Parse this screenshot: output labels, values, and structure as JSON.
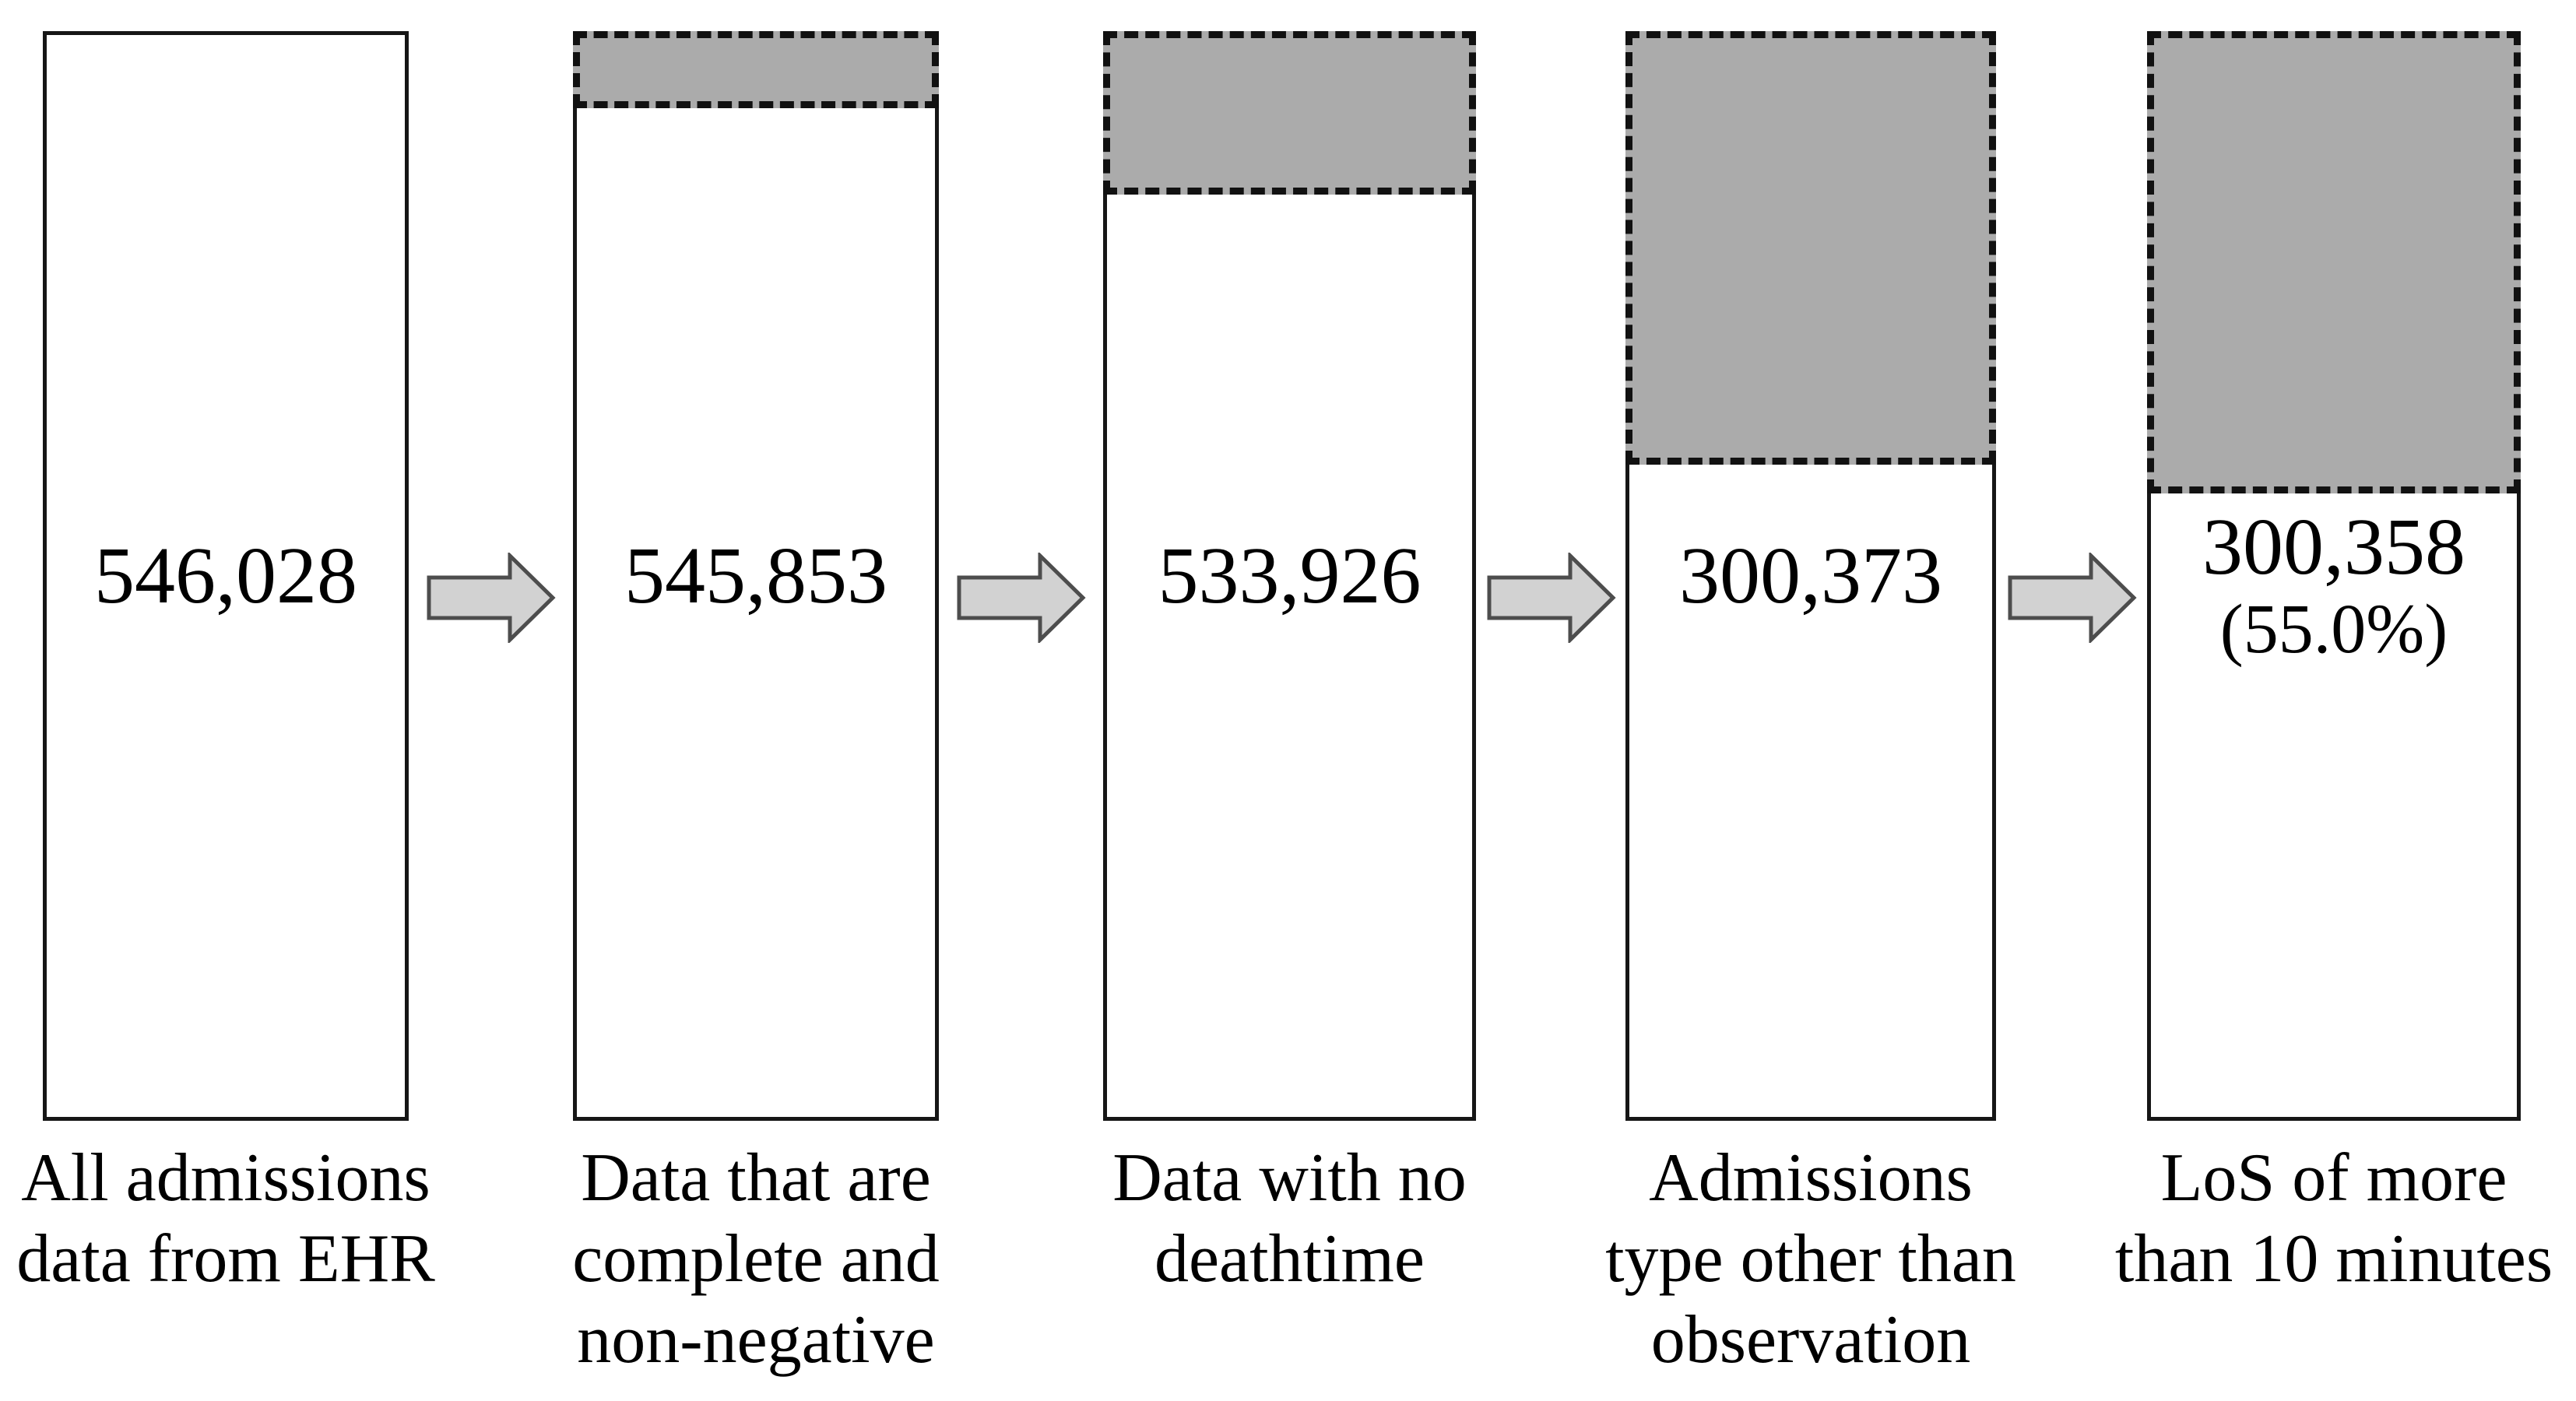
{
  "figure": {
    "description": "Admissions data filtering flow diagram with five bars and four right arrows",
    "background": "#ffffff"
  },
  "bars": [
    {
      "value": "546,028",
      "percent": "",
      "label": "All admissions\ndata from EHR",
      "excluded_pct": 0
    },
    {
      "value": "545,853",
      "percent": "",
      "label": "Data that are\ncomplete and\nnon-negative",
      "excluded_pct": 7.1
    },
    {
      "value": "533,926",
      "percent": "",
      "label": "Data with no\ndeathtime",
      "excluded_pct": 15.1
    },
    {
      "value": "300,373",
      "percent": "",
      "label": "Admissions\ntype other than\nobservation",
      "excluded_pct": 40.1
    },
    {
      "value": "300,358",
      "percent": "(55.0%)",
      "label": "LoS of more\nthan 10 minutes",
      "excluded_pct": 42.7
    }
  ],
  "colors": {
    "excluded_fill": "#ababab",
    "dash": "#111111",
    "bar_border": "#161616",
    "arrow_fill": "#d2d2d2",
    "arrow_border": "#4d4d4d",
    "text": "#000000"
  },
  "chart_data": {
    "type": "bar",
    "title": "",
    "categories": [
      "All admissions data from EHR",
      "Data that are complete and non-negative",
      "Data with no deathtime",
      "Admissions type other than observation",
      "LoS of more than 10 minutes"
    ],
    "values": [
      546028,
      545853,
      533926,
      300373,
      300358
    ],
    "value_labels": [
      "546,028",
      "545,853",
      "533,926",
      "300,373",
      "300,358 (55.0%)"
    ],
    "final_share_of_total": "55.0%",
    "excluded_fraction_drawn": [
      0,
      0.071,
      0.151,
      0.401,
      0.427
    ],
    "orientation": "vertical",
    "notes": "Gray dashed top region of each bar marks excluded records; arrows show filtering sequence"
  }
}
